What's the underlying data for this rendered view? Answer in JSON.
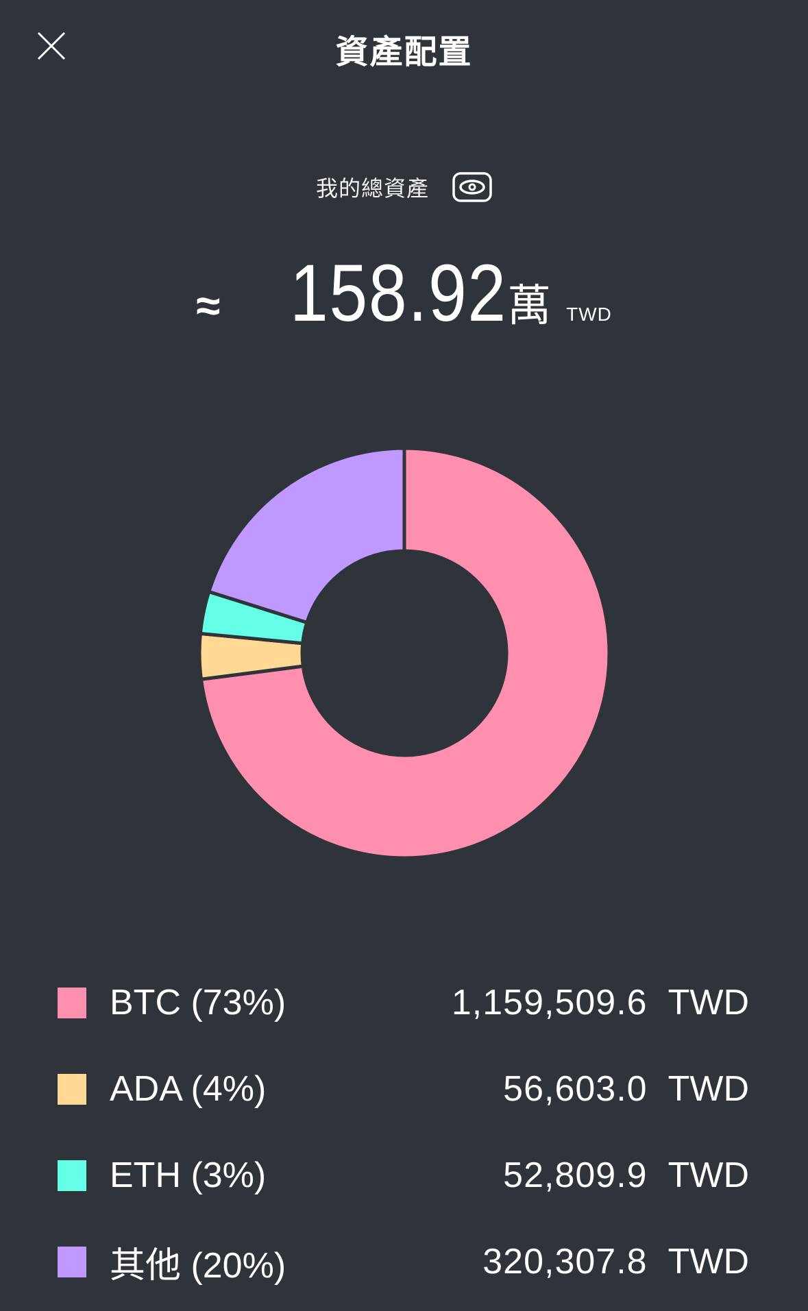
{
  "header": {
    "title": "資產配置",
    "close_icon": "close-icon"
  },
  "summary": {
    "label": "我的總資產",
    "eye_icon": "eye-icon",
    "approx": "≈",
    "amount": "158.92",
    "unit": "萬",
    "currency": "TWD"
  },
  "chart_data": {
    "type": "pie",
    "variant": "donut",
    "categories": [
      "BTC",
      "ADA",
      "ETH",
      "其他"
    ],
    "values": [
      1159509.6,
      56603.0,
      52809.9,
      320307.8
    ],
    "percents": [
      73,
      4,
      3,
      20
    ],
    "colors": [
      "#ff8fae",
      "#ffd993",
      "#64ffe6",
      "#bf99ff"
    ]
  },
  "legend": [
    {
      "label": "BTC (73%)",
      "value": "1,159,509.6",
      "currency": "TWD",
      "color": "#ff8fae"
    },
    {
      "label": "ADA (4%)",
      "value": "56,603.0",
      "currency": "TWD",
      "color": "#ffd993"
    },
    {
      "label": "ETH (3%)",
      "value": "52,809.9",
      "currency": "TWD",
      "color": "#64ffe6"
    },
    {
      "label": "其他 (20%)",
      "value": "320,307.8",
      "currency": "TWD",
      "color": "#bf99ff"
    }
  ]
}
